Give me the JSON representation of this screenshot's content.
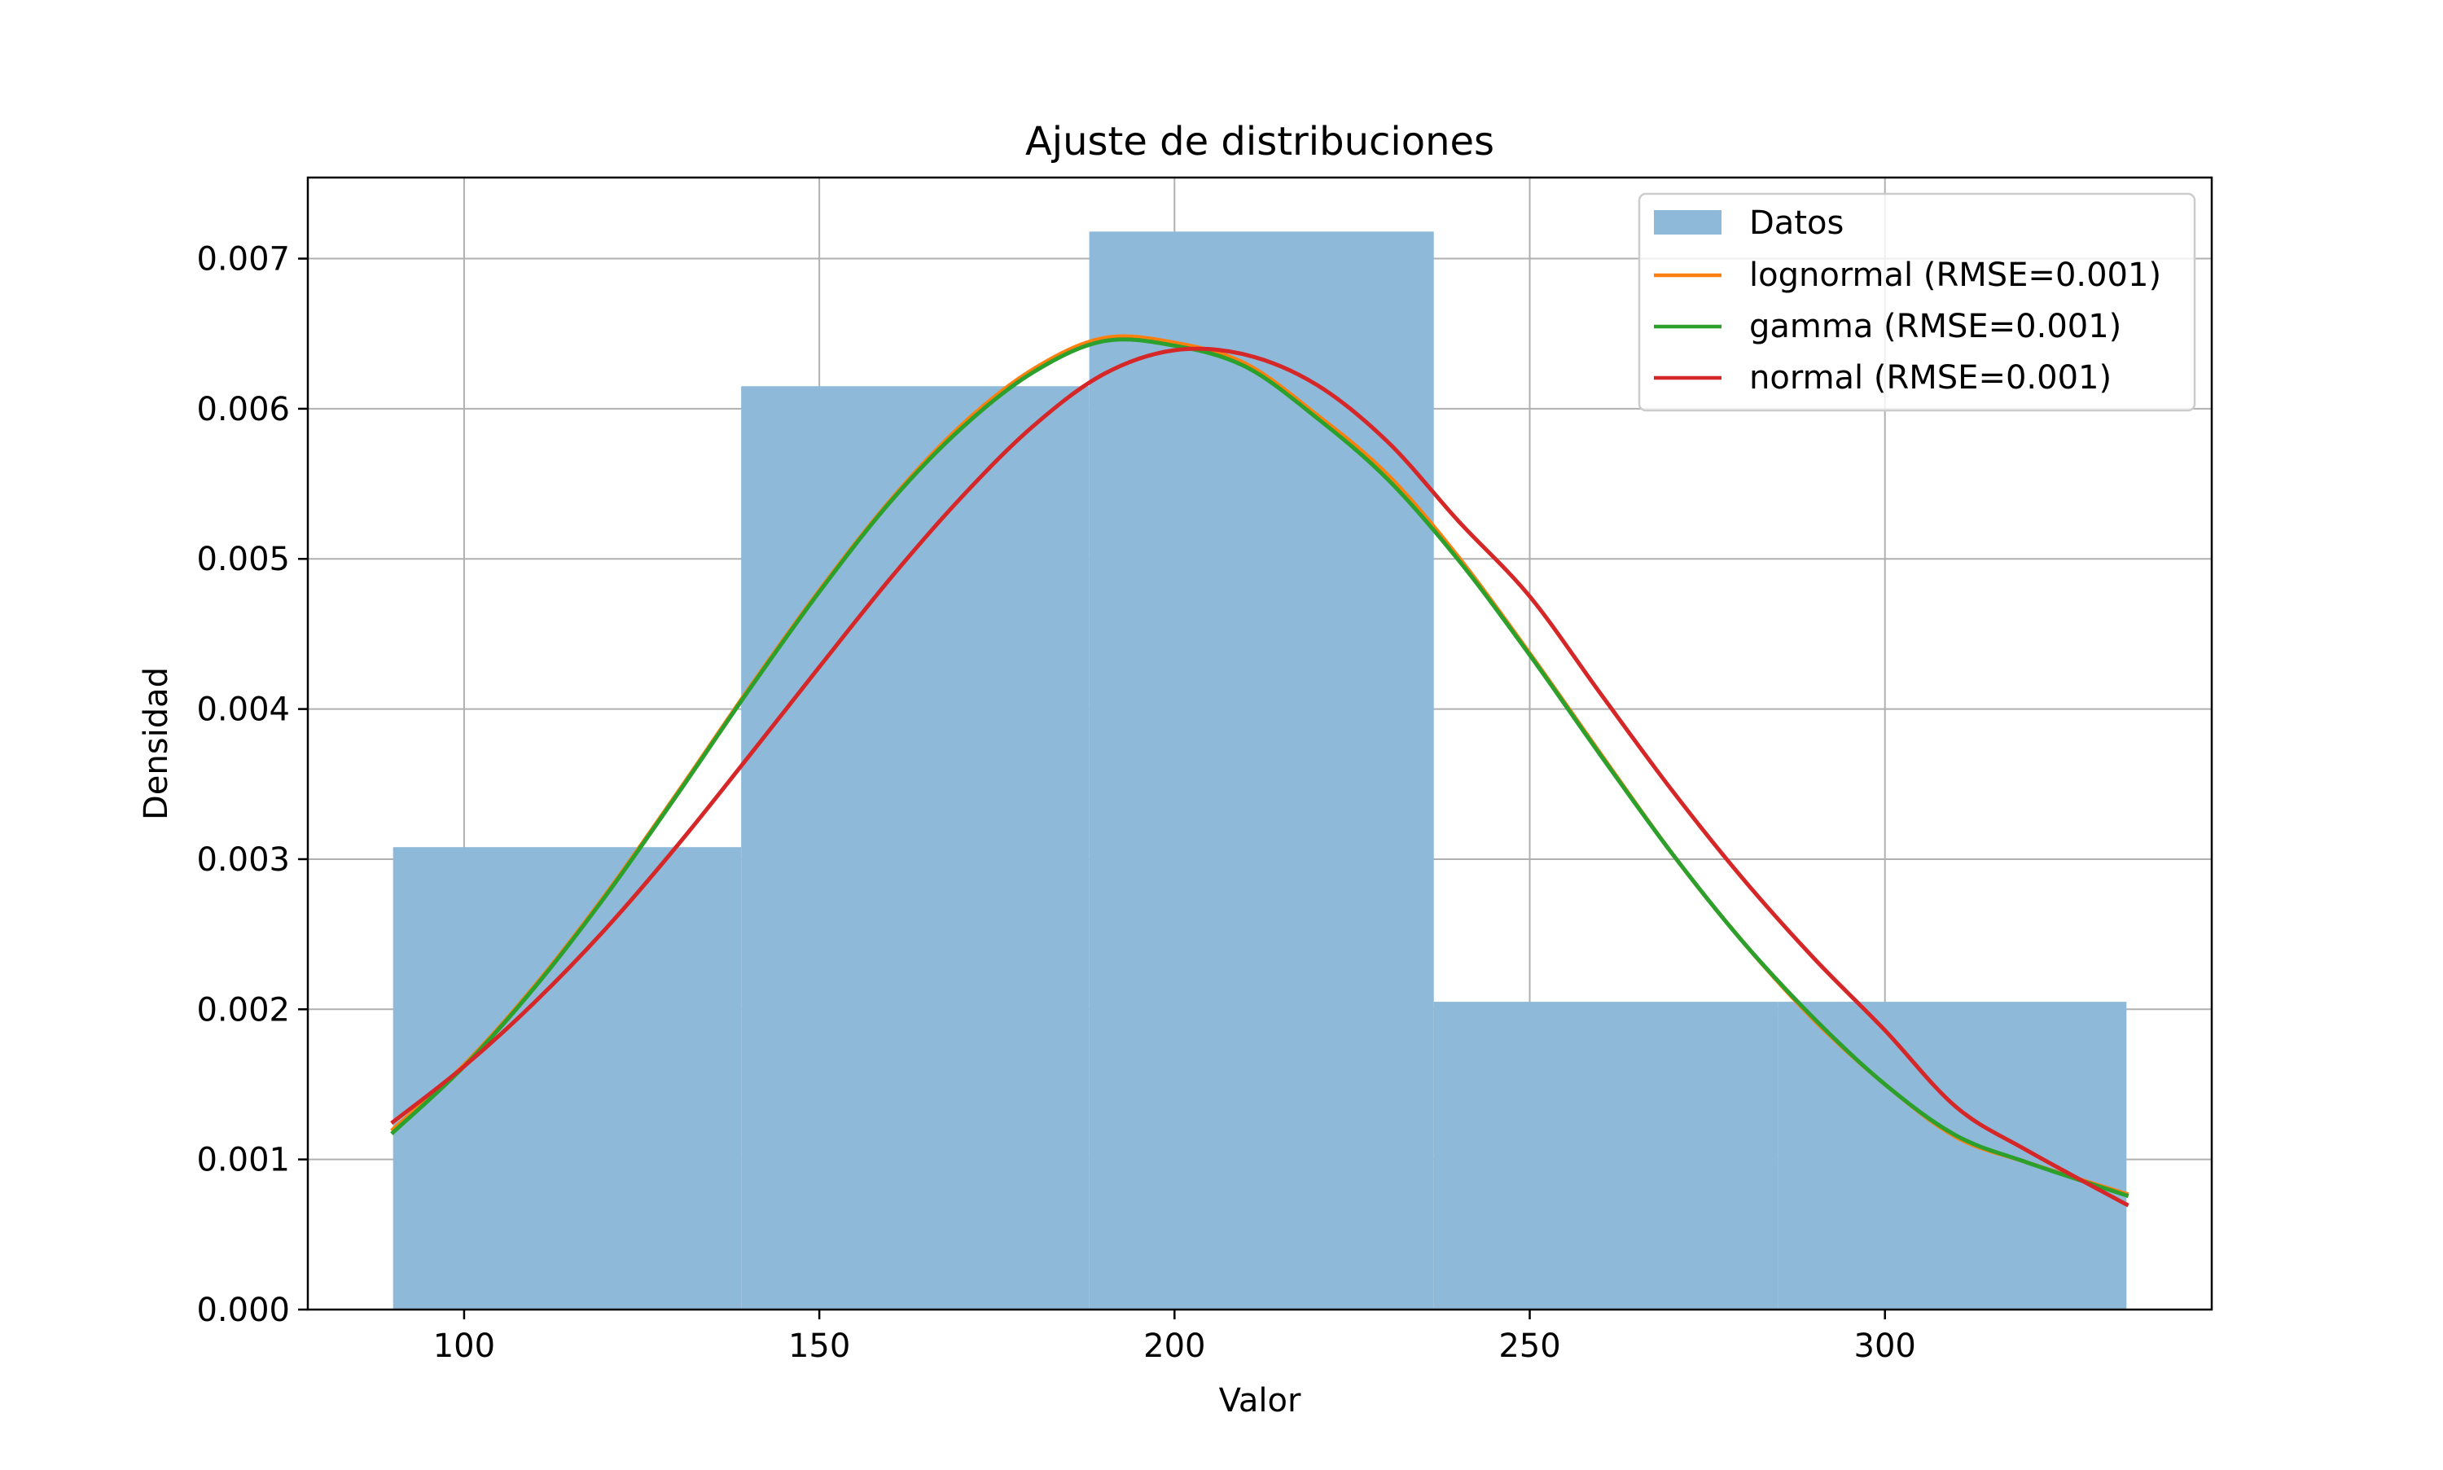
{
  "chart_data": {
    "type": "bar",
    "title": "Ajuste de distribuciones",
    "xlabel": "Valor",
    "ylabel": "Densidad",
    "xlim": [
      78,
      346
    ],
    "ylim": [
      0,
      0.00754
    ],
    "grid": true,
    "legend_position": "top-right",
    "xticks": [
      100,
      150,
      200,
      250,
      300
    ],
    "xtick_labels": [
      "100",
      "150",
      "200",
      "250",
      "300"
    ],
    "yticks": [
      0,
      0.001,
      0.002,
      0.003,
      0.004,
      0.005,
      0.006,
      0.007
    ],
    "ytick_labels": [
      "0.000",
      "0.001",
      "0.002",
      "0.003",
      "0.004",
      "0.005",
      "0.006",
      "0.007"
    ],
    "histogram": {
      "name": "Datos",
      "color": "#8fb9d9",
      "bins": [
        {
          "x0": 90,
          "x1": 139,
          "value": 0.00308
        },
        {
          "x0": 139,
          "x1": 188,
          "value": 0.00615
        },
        {
          "x0": 188,
          "x1": 236.5,
          "value": 0.00718
        },
        {
          "x0": 236.5,
          "x1": 285,
          "value": 0.00205
        },
        {
          "x0": 285,
          "x1": 334,
          "value": 0.00205
        }
      ]
    },
    "series": [
      {
        "name": "lognormal (RMSE=0.001)",
        "color": "#ff7f0e",
        "x": [
          90,
          100,
          110,
          120,
          130,
          140,
          150,
          160,
          170,
          180,
          190,
          200,
          210,
          220,
          230,
          240,
          250,
          260,
          270,
          280,
          290,
          300,
          310,
          320,
          334
        ],
        "y": [
          0.0012,
          0.00163,
          0.00216,
          0.00277,
          0.00344,
          0.00413,
          0.00479,
          0.00539,
          0.00589,
          0.00626,
          0.00647,
          0.00644,
          0.0063,
          0.00596,
          0.00556,
          0.00501,
          0.00437,
          0.0037,
          0.00304,
          0.00245,
          0.00193,
          0.0015,
          0.00115,
          0.00098,
          0.00077
        ]
      },
      {
        "name": "gamma (RMSE=0.001)",
        "color": "#2ca02c",
        "x": [
          90,
          100,
          110,
          120,
          130,
          140,
          150,
          160,
          170,
          180,
          190,
          200,
          210,
          220,
          230,
          240,
          250,
          260,
          270,
          280,
          290,
          300,
          310,
          320,
          334
        ],
        "y": [
          0.00118,
          0.00162,
          0.00215,
          0.00276,
          0.00343,
          0.00412,
          0.00478,
          0.00538,
          0.00587,
          0.00624,
          0.00645,
          0.00642,
          0.00628,
          0.00594,
          0.00553,
          0.00499,
          0.00436,
          0.00369,
          0.00304,
          0.00245,
          0.00194,
          0.0015,
          0.00116,
          0.00098,
          0.00076
        ]
      },
      {
        "name": "normal (RMSE=0.001)",
        "color": "#d62728",
        "x": [
          90,
          100,
          110,
          120,
          130,
          140,
          150,
          160,
          170,
          180,
          190,
          200,
          210,
          220,
          230,
          240,
          250,
          260,
          270,
          280,
          290,
          300,
          310,
          320,
          334
        ],
        "y": [
          0.00125,
          0.00162,
          0.00205,
          0.00254,
          0.00309,
          0.00368,
          0.00428,
          0.00487,
          0.00541,
          0.00588,
          0.00623,
          0.00639,
          0.00636,
          0.00616,
          0.00578,
          0.00525,
          0.00475,
          0.0041,
          0.00346,
          0.00287,
          0.00234,
          0.00186,
          0.00135,
          0.00106,
          0.0007
        ]
      }
    ]
  }
}
